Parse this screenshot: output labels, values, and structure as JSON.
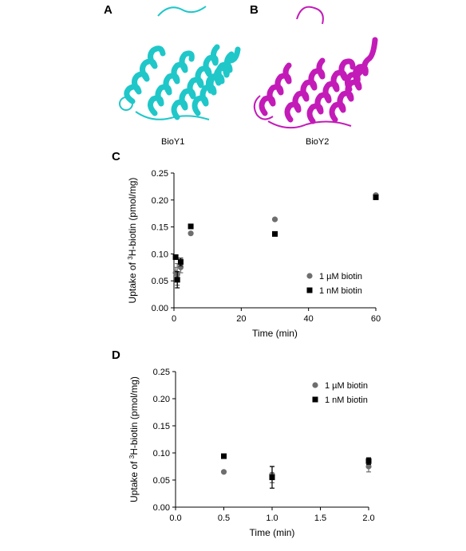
{
  "panels": {
    "A": {
      "letter": "A",
      "caption": "BioY1",
      "color": "#1fc7c9"
    },
    "B": {
      "letter": "B",
      "caption": "BioY2",
      "color": "#c31bb8"
    },
    "C": {
      "letter": "C"
    },
    "D": {
      "letter": "D"
    }
  },
  "chart_data": [
    {
      "type": "scatter",
      "panel": "C",
      "title": "",
      "ylabel_prefix": "Uptake of ",
      "ylabel_sup": "3",
      "ylabel_suffix": "H-biotin (pmol/mg)",
      "xlabel": "Time (min)",
      "xlim": [
        0,
        60
      ],
      "ylim": [
        0,
        0.25
      ],
      "xticks": [
        0,
        20,
        40,
        60
      ],
      "xtick_labels": [
        "0",
        "20",
        "40",
        "60"
      ],
      "yticks": [
        0,
        0.05,
        0.1,
        0.15,
        0.2,
        0.25
      ],
      "ytick_labels": [
        "0.00",
        "0.05",
        "0.10",
        "0.15",
        "0.20",
        "0.25"
      ],
      "legend_position": "bottom-right",
      "grid": false,
      "series": [
        {
          "name": "1 µM biotin",
          "marker": "circle",
          "color": "#6e6e6e",
          "x": [
            0.5,
            1,
            2,
            5,
            30,
            60
          ],
          "y": [
            0.065,
            0.062,
            0.075,
            0.138,
            0.164,
            0.209
          ],
          "err": [
            0.01,
            0.02,
            0.01,
            0,
            0,
            0
          ]
        },
        {
          "name": "1 nM biotin",
          "marker": "square",
          "color": "#000000",
          "x": [
            0.5,
            1,
            2,
            5,
            30,
            60
          ],
          "y": [
            0.094,
            0.052,
            0.085,
            0.151,
            0.137,
            0.205
          ],
          "err": [
            0,
            0.015,
            0.007,
            0,
            0,
            0
          ]
        }
      ]
    },
    {
      "type": "scatter",
      "panel": "D",
      "title": "",
      "ylabel_prefix": "Uptake of ",
      "ylabel_sup": "3",
      "ylabel_suffix": "H-biotin (pmol/mg)",
      "xlabel": "Time (min)",
      "xlim": [
        0,
        2.0
      ],
      "ylim": [
        0,
        0.25
      ],
      "xticks": [
        0,
        0.5,
        1.0,
        1.5,
        2.0
      ],
      "xtick_labels": [
        "0.0",
        "0.5",
        "1.0",
        "1.5",
        "2.0"
      ],
      "yticks": [
        0,
        0.05,
        0.1,
        0.15,
        0.2,
        0.25
      ],
      "ytick_labels": [
        "0.00",
        "0.05",
        "0.10",
        "0.15",
        "0.20",
        "0.25"
      ],
      "legend_position": "top-right",
      "grid": false,
      "series": [
        {
          "name": "1 µM biotin",
          "marker": "circle",
          "color": "#6e6e6e",
          "x": [
            0.5,
            1.0,
            2.0
          ],
          "y": [
            0.065,
            0.06,
            0.075
          ],
          "err": [
            0,
            0.015,
            0.01
          ]
        },
        {
          "name": "1 nM biotin",
          "marker": "square",
          "color": "#000000",
          "x": [
            0.5,
            1.0,
            2.0
          ],
          "y": [
            0.094,
            0.055,
            0.085
          ],
          "err": [
            0,
            0.02,
            0.006
          ]
        }
      ]
    }
  ]
}
